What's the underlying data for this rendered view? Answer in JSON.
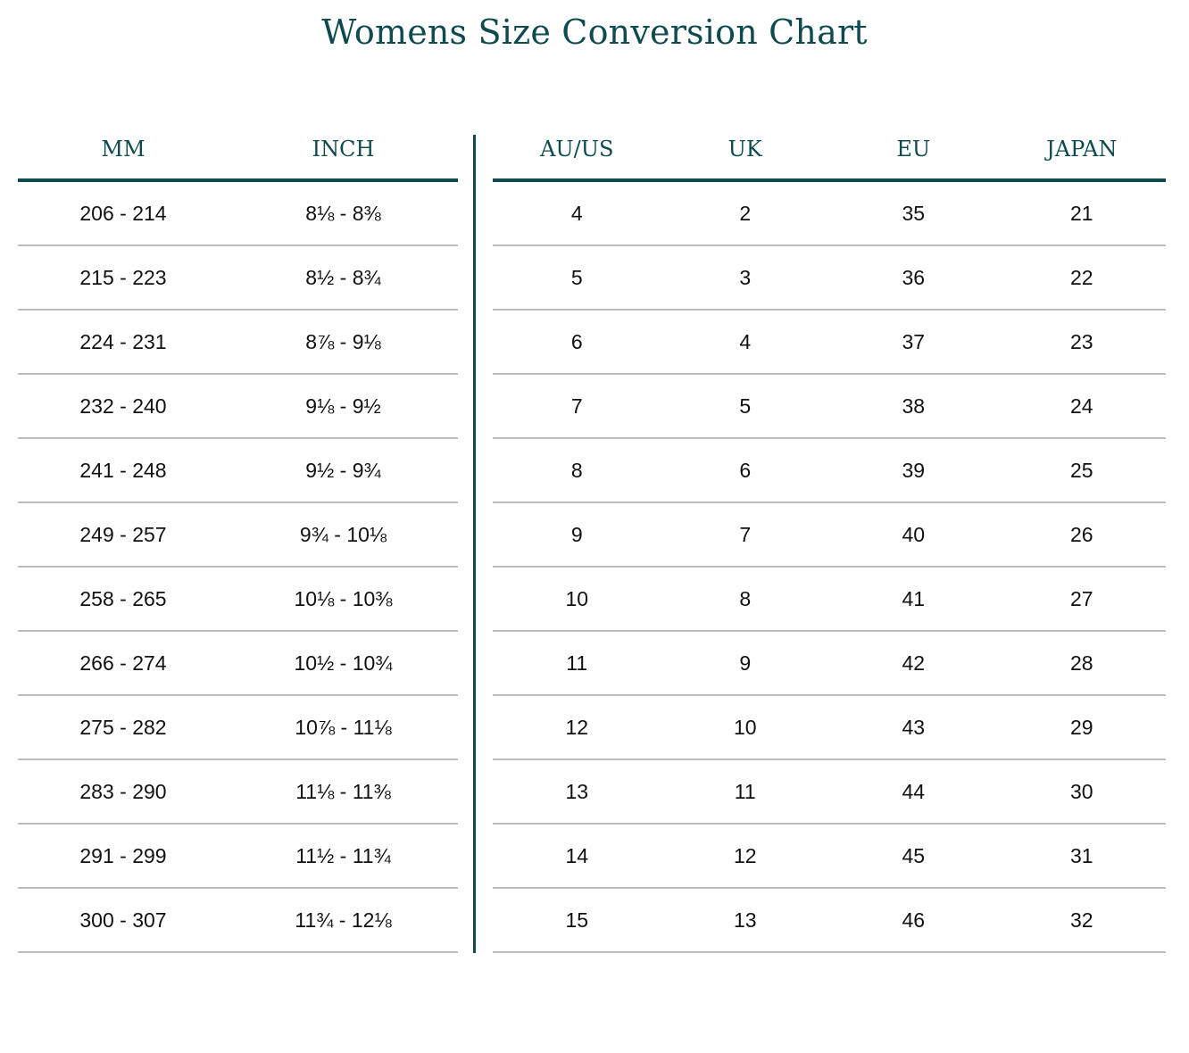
{
  "title": "Womens Size Conversion Chart",
  "left_headers": [
    "MM",
    "INCH"
  ],
  "right_headers": [
    "AU/US",
    "UK",
    "EU",
    "JAPAN"
  ],
  "rows": [
    {
      "mm": "206  -  214",
      "inch": "8⅛  -  8⅜",
      "au_us": "4",
      "uk": "2",
      "eu": "35",
      "japan": "21"
    },
    {
      "mm": "215  -  223",
      "inch": "8½  -  8¾",
      "au_us": "5",
      "uk": "3",
      "eu": "36",
      "japan": "22"
    },
    {
      "mm": "224  -  231",
      "inch": "8⅞  -  9⅛",
      "au_us": "6",
      "uk": "4",
      "eu": "37",
      "japan": "23"
    },
    {
      "mm": "232  -  240",
      "inch": "9⅛  -  9½",
      "au_us": "7",
      "uk": "5",
      "eu": "38",
      "japan": "24"
    },
    {
      "mm": "241  -  248",
      "inch": "9½  -  9¾",
      "au_us": "8",
      "uk": "6",
      "eu": "39",
      "japan": "25"
    },
    {
      "mm": "249  -  257",
      "inch": "9¾  -  10⅛",
      "au_us": "9",
      "uk": "7",
      "eu": "40",
      "japan": "26"
    },
    {
      "mm": "258  -  265",
      "inch": "10⅛  -  10⅜",
      "au_us": "10",
      "uk": "8",
      "eu": "41",
      "japan": "27"
    },
    {
      "mm": "266  -  274",
      "inch": "10½  -  10¾",
      "au_us": "11",
      "uk": "9",
      "eu": "42",
      "japan": "28"
    },
    {
      "mm": "275  -  282",
      "inch": "10⅞  -  11⅛",
      "au_us": "12",
      "uk": "10",
      "eu": "43",
      "japan": "29"
    },
    {
      "mm": "283  -  290",
      "inch": "11⅛  -  11⅜",
      "au_us": "13",
      "uk": "11",
      "eu": "44",
      "japan": "30"
    },
    {
      "mm": "291  -  299",
      "inch": "11½  -  11¾",
      "au_us": "14",
      "uk": "12",
      "eu": "45",
      "japan": "31"
    },
    {
      "mm": "300  -  307",
      "inch": "11¾  -  12⅛",
      "au_us": "15",
      "uk": "13",
      "eu": "46",
      "japan": "32"
    }
  ],
  "colors": {
    "accent": "#0f4a4f",
    "row_line": "#bdbdbd",
    "text": "#111111"
  }
}
